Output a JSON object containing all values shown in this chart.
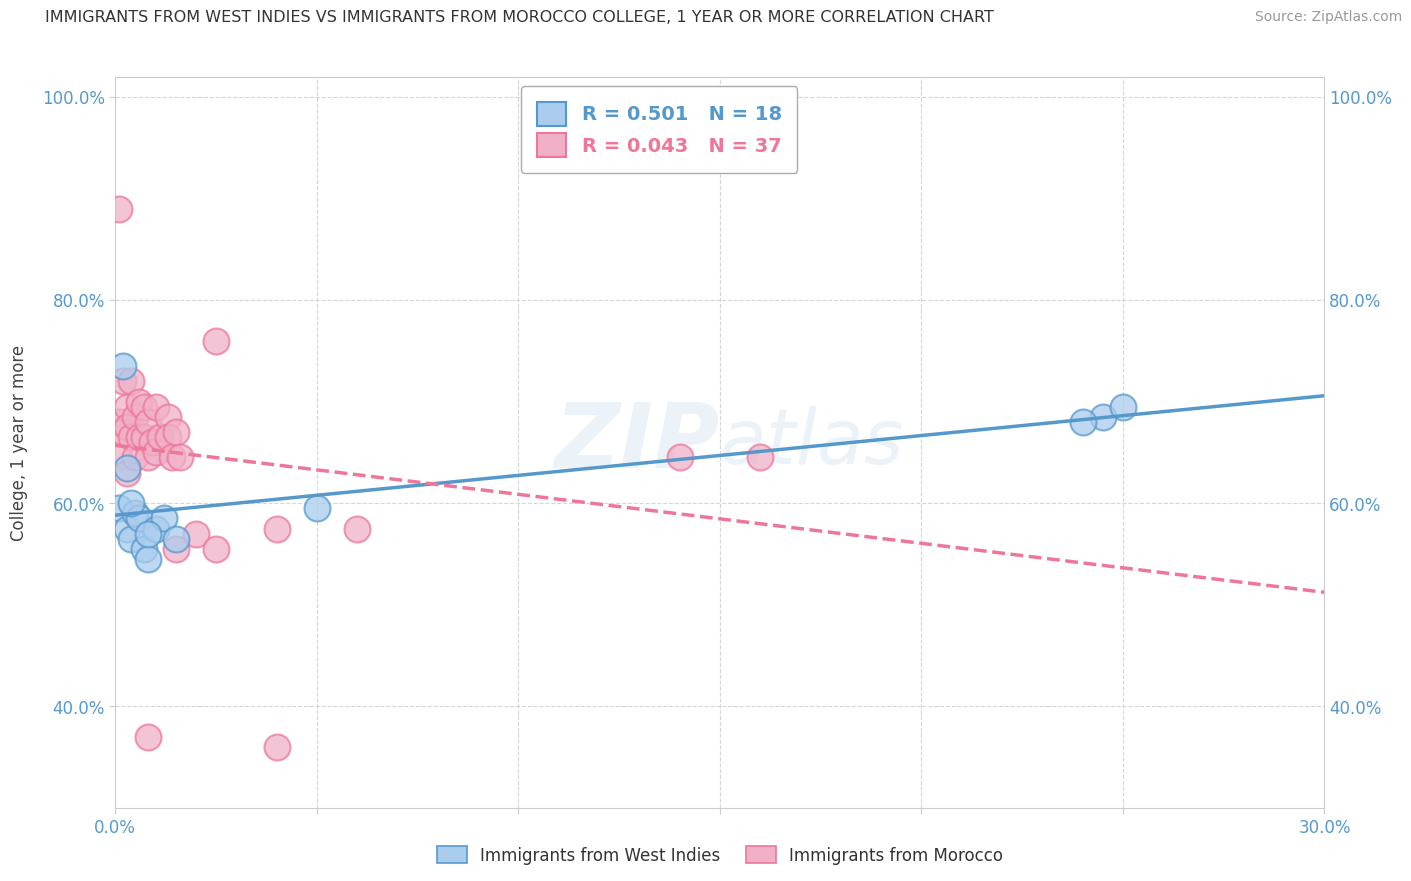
{
  "title": "IMMIGRANTS FROM WEST INDIES VS IMMIGRANTS FROM MOROCCO COLLEGE, 1 YEAR OR MORE CORRELATION CHART",
  "source": "Source: ZipAtlas.com",
  "ylabel": "College, 1 year or more",
  "xlim": [
    0.0,
    0.3
  ],
  "ylim": [
    0.3,
    1.02
  ],
  "x_ticks": [
    0.0,
    0.05,
    0.1,
    0.15,
    0.2,
    0.25,
    0.3
  ],
  "y_ticks": [
    0.4,
    0.6,
    0.8,
    1.0
  ],
  "grid_color": "#cccccc",
  "west_indies_R": 0.501,
  "west_indies_N": 18,
  "morocco_R": 0.043,
  "morocco_N": 37,
  "west_indies_color": "#aaccee",
  "morocco_color": "#f0b0c8",
  "west_indies_line_color": "#5599cc",
  "morocco_line_color": "#ee7799",
  "west_indies_x": [
    0.001,
    0.002,
    0.003,
    0.003,
    0.004,
    0.005,
    0.006,
    0.007,
    0.008,
    0.01,
    0.012,
    0.015,
    0.008,
    0.004,
    0.245,
    0.25,
    0.24,
    0.05
  ],
  "west_indies_y": [
    0.595,
    0.735,
    0.635,
    0.575,
    0.565,
    0.59,
    0.585,
    0.555,
    0.545,
    0.575,
    0.585,
    0.565,
    0.57,
    0.6,
    0.685,
    0.695,
    0.68,
    0.595
  ],
  "morocco_x": [
    0.001,
    0.001,
    0.002,
    0.002,
    0.003,
    0.003,
    0.003,
    0.004,
    0.004,
    0.005,
    0.005,
    0.006,
    0.006,
    0.007,
    0.007,
    0.008,
    0.008,
    0.009,
    0.01,
    0.01,
    0.011,
    0.013,
    0.013,
    0.014,
    0.015,
    0.016,
    0.02,
    0.025,
    0.04,
    0.06,
    0.14,
    0.16,
    0.001,
    0.008,
    0.04,
    0.015,
    0.025
  ],
  "morocco_y": [
    0.645,
    0.68,
    0.72,
    0.67,
    0.695,
    0.675,
    0.63,
    0.72,
    0.665,
    0.685,
    0.645,
    0.7,
    0.665,
    0.695,
    0.665,
    0.68,
    0.645,
    0.66,
    0.65,
    0.695,
    0.665,
    0.685,
    0.665,
    0.645,
    0.67,
    0.645,
    0.57,
    0.555,
    0.575,
    0.575,
    0.645,
    0.645,
    0.89,
    0.37,
    0.36,
    0.555,
    0.76
  ],
  "background_color": "#ffffff",
  "legend_box_color": "#ffffff",
  "legend_box_edge": "#aaaaaa"
}
